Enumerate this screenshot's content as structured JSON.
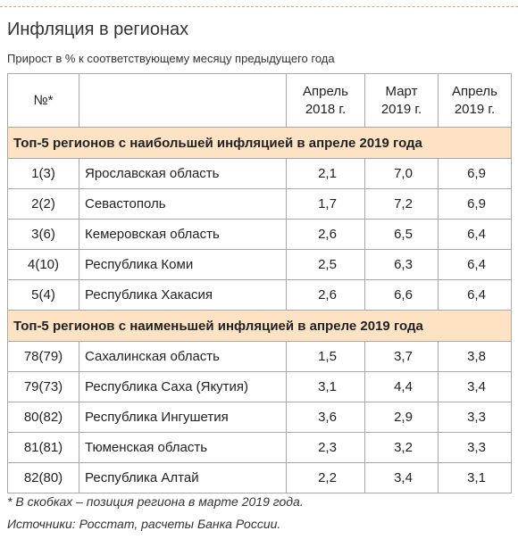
{
  "header": {
    "title": "Инфляция в регионах",
    "subtitle": "Прирост в % к соответствующему месяцу предыдущего года"
  },
  "table": {
    "columns": [
      "№*",
      "",
      "Апрель\n2018 г.",
      "Март\n2019 г.",
      "Апрель\n2019 г."
    ],
    "sections": [
      {
        "title": "Топ-5 регионов с наибольшей инфляцией в апреле 2019 года",
        "rows": [
          [
            "1(3)",
            "Ярославская область",
            "2,1",
            "7,0",
            "6,9"
          ],
          [
            "2(2)",
            "Севастополь",
            "1,7",
            "7,2",
            "6,9"
          ],
          [
            "3(6)",
            "Кемеровская область",
            "2,6",
            "6,5",
            "6,4"
          ],
          [
            "4(10)",
            "Республика Коми",
            "2,5",
            "6,3",
            "6,4"
          ],
          [
            "5(4)",
            "Республика Хакасия",
            "2,6",
            "6,6",
            "6,4"
          ]
        ]
      },
      {
        "title": "Топ-5 регионов с наименьшей инфляцией в апреле 2019 года",
        "rows": [
          [
            "78(79)",
            "Сахалинская область",
            "1,5",
            "3,7",
            "3,8"
          ],
          [
            "79(73)",
            "Республика Саха (Якутия)",
            "3,1",
            "4,4",
            "3,4"
          ],
          [
            "80(82)",
            "Республика Ингушетия",
            "3,6",
            "2,9",
            "3,3"
          ],
          [
            "81(81)",
            "Тюменская область",
            "2,3",
            "3,2",
            "3,3"
          ],
          [
            "82(80)",
            "Республика Алтай",
            "2,2",
            "3,4",
            "3,1"
          ]
        ]
      }
    ]
  },
  "footnotes": [
    "* В скобках – позиция региона в марте 2019 года.",
    "Источники: Росстат, расчеты Банка России."
  ]
}
